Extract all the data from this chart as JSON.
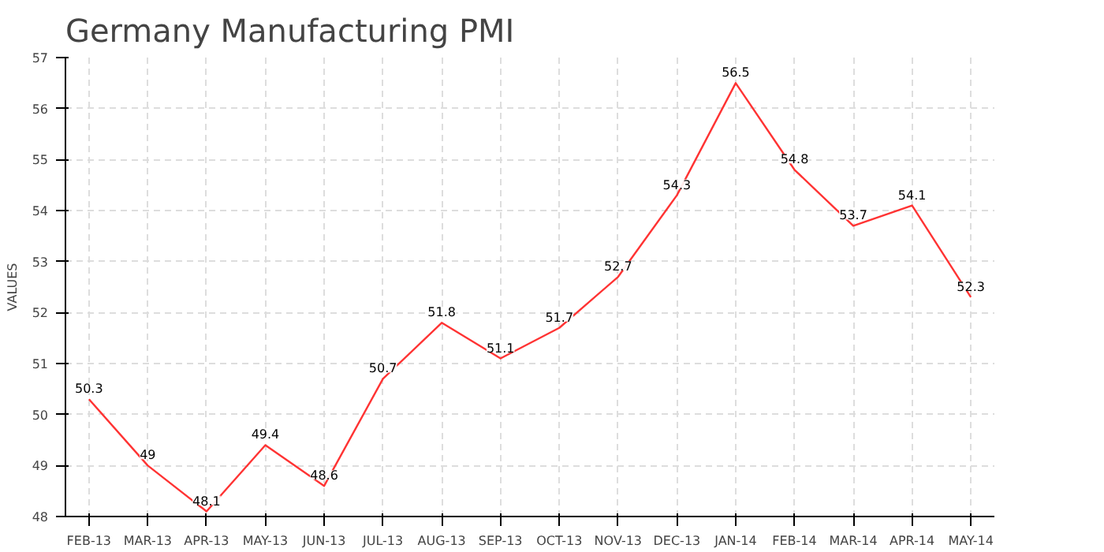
{
  "chart_data": {
    "type": "line",
    "title": "Germany Manufacturing PMI",
    "ylabel": "VALUES",
    "categories": [
      "FEB-13",
      "MAR-13",
      "APR-13",
      "MAY-13",
      "JUN-13",
      "JUL-13",
      "AUG-13",
      "SEP-13",
      "OCT-13",
      "NOV-13",
      "DEC-13",
      "JAN-14",
      "FEB-14",
      "MAR-14",
      "APR-14",
      "MAY-14"
    ],
    "series": [
      {
        "color": "#ff3333",
        "values": [
          50.3,
          49,
          48.1,
          49.4,
          48.6,
          50.7,
          51.8,
          51.1,
          51.7,
          52.7,
          54.3,
          56.5,
          54.8,
          53.7,
          54.1,
          52.3
        ]
      }
    ],
    "ylim": [
      48,
      57
    ],
    "yticks": [
      48,
      49,
      50,
      51,
      52,
      53,
      54,
      55,
      56,
      57
    ],
    "grid": true,
    "data_labels": true,
    "marker": "none",
    "line_style": "solid"
  }
}
